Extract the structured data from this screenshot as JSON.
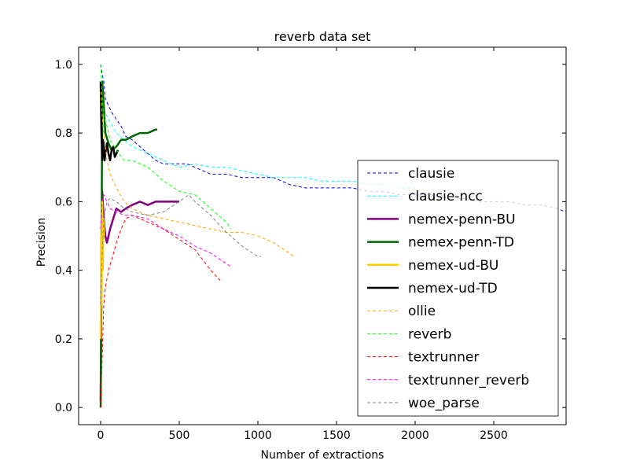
{
  "chart_data": {
    "type": "line",
    "title": "reverb data set",
    "xlabel": "Number of extractions",
    "ylabel": "Precision",
    "xlim": [
      -140,
      2960
    ],
    "ylim": [
      -0.05,
      1.05
    ],
    "xticks": [
      0,
      500,
      1000,
      1500,
      2000,
      2500
    ],
    "yticks": [
      0.0,
      0.2,
      0.4,
      0.6,
      0.8,
      1.0
    ],
    "xtick_labels": [
      "0",
      "500",
      "1000",
      "1500",
      "2000",
      "2500"
    ],
    "ytick_labels": [
      "0.0",
      "0.2",
      "0.4",
      "0.6",
      "0.8",
      "1.0"
    ],
    "grid": false,
    "legend_position": "center-right",
    "series": [
      {
        "name": "clausie",
        "color": "#0000ff",
        "style": "dashed",
        "x": [
          0,
          10,
          20,
          30,
          50,
          70,
          100,
          130,
          160,
          200,
          250,
          300,
          350,
          400,
          500,
          550,
          600,
          700,
          800,
          900,
          1000,
          1100,
          1200,
          1300,
          1400,
          1500,
          1600,
          1700,
          1800,
          1900,
          2000,
          2100,
          2200,
          2300,
          2400,
          2500,
          2600,
          2700,
          2800,
          2900,
          2960
        ],
        "y": [
          1.0,
          0.97,
          0.95,
          0.9,
          0.88,
          0.86,
          0.84,
          0.82,
          0.79,
          0.78,
          0.76,
          0.74,
          0.72,
          0.71,
          0.71,
          0.71,
          0.7,
          0.68,
          0.68,
          0.67,
          0.67,
          0.67,
          0.65,
          0.64,
          0.64,
          0.64,
          0.64,
          0.63,
          0.63,
          0.62,
          0.62,
          0.62,
          0.61,
          0.61,
          0.6,
          0.6,
          0.6,
          0.59,
          0.59,
          0.58,
          0.57
        ]
      },
      {
        "name": "clausie-ncc",
        "color": "#00ffff",
        "style": "dashed",
        "x": [
          0,
          10,
          30,
          50,
          100,
          150,
          200,
          300,
          400,
          500,
          600,
          700,
          800,
          900,
          1000,
          1100,
          1200,
          1300,
          1400,
          1500,
          1600,
          1700,
          1800,
          1900,
          2000
        ],
        "y": [
          0.9,
          0.88,
          0.86,
          0.84,
          0.8,
          0.78,
          0.76,
          0.74,
          0.72,
          0.7,
          0.71,
          0.7,
          0.7,
          0.69,
          0.68,
          0.67,
          0.67,
          0.67,
          0.66,
          0.66,
          0.66,
          0.65,
          0.65,
          0.64,
          0.64
        ]
      },
      {
        "name": "nemex-penn-BU",
        "color": "#800080",
        "style": "solid",
        "width": 2.5,
        "x": [
          0,
          5,
          10,
          20,
          30,
          40,
          60,
          80,
          100,
          130,
          160,
          200,
          250,
          300,
          350,
          400,
          450,
          500
        ],
        "y": [
          0.02,
          0.4,
          0.63,
          0.55,
          0.5,
          0.48,
          0.52,
          0.55,
          0.58,
          0.57,
          0.58,
          0.59,
          0.6,
          0.59,
          0.6,
          0.6,
          0.6,
          0.6
        ]
      },
      {
        "name": "nemex-penn-TD",
        "color": "#006400",
        "style": "solid",
        "width": 2.5,
        "x": [
          0,
          5,
          10,
          20,
          30,
          50,
          70,
          100,
          130,
          160,
          200,
          250,
          300,
          350,
          360
        ],
        "y": [
          0.0,
          0.3,
          0.95,
          0.88,
          0.8,
          0.77,
          0.75,
          0.76,
          0.78,
          0.78,
          0.79,
          0.8,
          0.8,
          0.81,
          0.81
        ]
      },
      {
        "name": "nemex-ud-BU",
        "color": "#ffcc00",
        "style": "solid",
        "width": 2.5,
        "x": [
          0,
          3,
          6,
          10,
          14,
          18,
          22
        ],
        "y": [
          0.2,
          0.5,
          0.3,
          0.6,
          0.4,
          0.55,
          0.5
        ]
      },
      {
        "name": "nemex-ud-TD",
        "color": "#000000",
        "style": "solid",
        "width": 2.5,
        "x": [
          0,
          5,
          10,
          15,
          20,
          25,
          30,
          40,
          50,
          60,
          70,
          80,
          90,
          100,
          110
        ],
        "y": [
          0.95,
          0.8,
          0.72,
          0.78,
          0.76,
          0.72,
          0.74,
          0.77,
          0.74,
          0.72,
          0.75,
          0.76,
          0.73,
          0.74,
          0.75
        ]
      },
      {
        "name": "ollie",
        "color": "#ffa500",
        "style": "dashed",
        "x": [
          0,
          10,
          20,
          40,
          60,
          100,
          150,
          200,
          300,
          400,
          500,
          600,
          700,
          800,
          900,
          1000,
          1100,
          1200,
          1230
        ],
        "y": [
          0.92,
          0.85,
          0.8,
          0.72,
          0.68,
          0.64,
          0.6,
          0.58,
          0.56,
          0.55,
          0.54,
          0.53,
          0.52,
          0.51,
          0.51,
          0.5,
          0.48,
          0.45,
          0.44
        ]
      },
      {
        "name": "reverb",
        "color": "#00ff00",
        "style": "dashed",
        "x": [
          0,
          10,
          20,
          40,
          60,
          100,
          150,
          200,
          250,
          300,
          400,
          500,
          600,
          700,
          800,
          830
        ],
        "y": [
          1.0,
          0.9,
          0.85,
          0.82,
          0.78,
          0.75,
          0.72,
          0.72,
          0.71,
          0.7,
          0.66,
          0.63,
          0.62,
          0.58,
          0.54,
          0.52
        ]
      },
      {
        "name": "textrunner",
        "color": "#ff0000",
        "style": "dashed",
        "x": [
          0,
          10,
          20,
          30,
          50,
          70,
          100,
          130,
          160,
          200,
          250,
          300,
          400,
          500,
          600,
          700,
          760
        ],
        "y": [
          0.0,
          0.15,
          0.3,
          0.35,
          0.4,
          0.43,
          0.48,
          0.52,
          0.55,
          0.56,
          0.55,
          0.54,
          0.52,
          0.49,
          0.46,
          0.4,
          0.37
        ]
      },
      {
        "name": "textrunner_reverb",
        "color": "#ff00ff",
        "style": "dashed",
        "x": [
          0,
          10,
          20,
          40,
          60,
          100,
          150,
          200,
          300,
          400,
          500,
          600,
          700,
          830
        ],
        "y": [
          0.52,
          0.6,
          0.62,
          0.6,
          0.58,
          0.57,
          0.56,
          0.56,
          0.55,
          0.52,
          0.5,
          0.47,
          0.45,
          0.41
        ]
      },
      {
        "name": "woe_parse",
        "color": "#808080",
        "style": "dashed",
        "x": [
          0,
          10,
          20,
          40,
          60,
          100,
          150,
          200,
          300,
          400,
          500,
          560,
          600,
          700,
          800,
          900,
          1000,
          1020
        ],
        "y": [
          0.3,
          0.45,
          0.55,
          0.6,
          0.61,
          0.6,
          0.58,
          0.57,
          0.56,
          0.57,
          0.6,
          0.62,
          0.6,
          0.56,
          0.51,
          0.47,
          0.44,
          0.44
        ]
      }
    ]
  }
}
